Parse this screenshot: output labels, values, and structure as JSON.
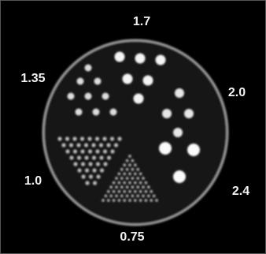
{
  "labels": [
    {
      "text": "1.7"
    },
    {
      "text": "1.35"
    },
    {
      "text": "2.0"
    },
    {
      "text": "1.0"
    },
    {
      "text": "2.4"
    },
    {
      "text": "0.75"
    }
  ]
}
